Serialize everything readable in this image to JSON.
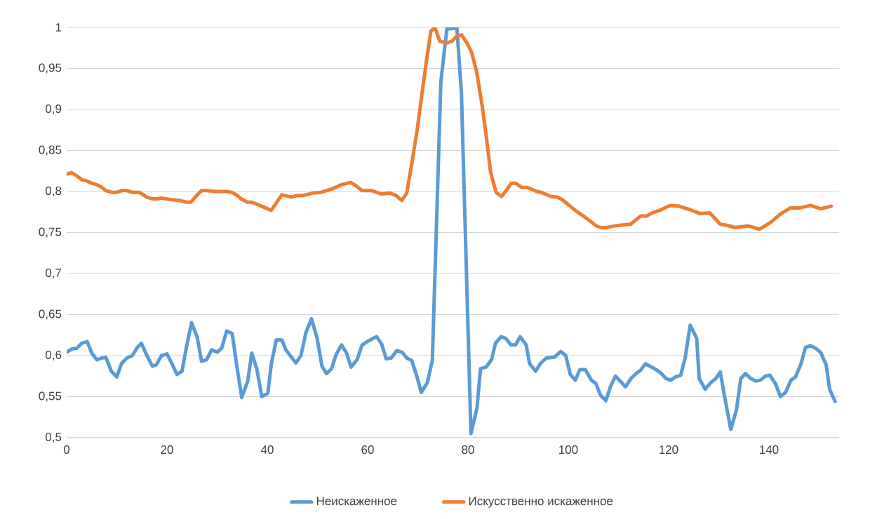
{
  "chart_data": {
    "type": "line",
    "xlim": [
      0,
      154
    ],
    "ylim": [
      0.5,
      1
    ],
    "xticks": [
      0,
      20,
      40,
      60,
      80,
      100,
      120,
      140
    ],
    "yticks": [
      {
        "value": 0.5,
        "label": "0,5"
      },
      {
        "value": 0.55,
        "label": "0,55"
      },
      {
        "value": 0.6,
        "label": "0,6"
      },
      {
        "value": 0.65,
        "label": "0,65"
      },
      {
        "value": 0.7,
        "label": "0,7"
      },
      {
        "value": 0.75,
        "label": "0,75"
      },
      {
        "value": 0.8,
        "label": "0,8"
      },
      {
        "value": 0.85,
        "label": "0,85"
      },
      {
        "value": 0.9,
        "label": "0,9"
      },
      {
        "value": 0.95,
        "label": "0,95"
      },
      {
        "value": 1,
        "label": "1"
      }
    ],
    "grid": "y",
    "legend": "bottom",
    "marker": "none",
    "line_style": "solid",
    "series": [
      {
        "name": "Неискаженное",
        "color": "#5b9bd5",
        "x": [
          0,
          1,
          2,
          3,
          4.1,
          5,
          6,
          7,
          7.8,
          8.9,
          10,
          10.9,
          12,
          13.1,
          14.1,
          14.9,
          16,
          17.1,
          17.9,
          18.9,
          20,
          21,
          22,
          23,
          23.9,
          24.9,
          26,
          26.9,
          27.9,
          28.9,
          30,
          30.9,
          31.9,
          33,
          34,
          34.9,
          36.1,
          36.9,
          37.9,
          38.9,
          40.1,
          40.8,
          41.8,
          42.9,
          43.7,
          44.7,
          45.7,
          46.7,
          47.7,
          48.8,
          49.9,
          50.9,
          51.8,
          52.8,
          53.7,
          54.8,
          55.8,
          56.7,
          57.9,
          58.9,
          59.9,
          60.8,
          61.8,
          62.8,
          63.7,
          64.7,
          65.8,
          66.9,
          67.8,
          68.8,
          69.8,
          70.7,
          71.9,
          72.9,
          74.6,
          75.8,
          77.8,
          78.7,
          80.6,
          81.8,
          82.5,
          83.6,
          84.7,
          85.5,
          86.6,
          87.5,
          88.6,
          89.5,
          90.4,
          91.6,
          92.3,
          93.5,
          94.4,
          95.6,
          97.2,
          98.5,
          99.5,
          100.4,
          101.4,
          102.3,
          103.4,
          104.6,
          105.5,
          106.4,
          107.5,
          108.4,
          109.4,
          110.5,
          111.4,
          112.5,
          113.5,
          114.4,
          115.4,
          116.3,
          117.5,
          118.4,
          119.5,
          120.4,
          121.4,
          122.4,
          123.3,
          124.3,
          125.6,
          126.1,
          127.3,
          128.4,
          129.4,
          130.3,
          131.1,
          132.4,
          133.5,
          134.4,
          135.3,
          136.4,
          137.4,
          138.3,
          139.3,
          140.2,
          141.3,
          142.3,
          143.3,
          144.4,
          145.3,
          146.4,
          147.3,
          148.3,
          149.3,
          150.3,
          151.4,
          152.1,
          153.2
        ],
        "values": [
          0.604,
          0.608,
          0.609,
          0.615,
          0.617,
          0.603,
          0.595,
          0.597,
          0.598,
          0.581,
          0.574,
          0.59,
          0.597,
          0.6,
          0.61,
          0.615,
          0.6,
          0.587,
          0.589,
          0.6,
          0.602,
          0.59,
          0.577,
          0.581,
          0.611,
          0.64,
          0.623,
          0.593,
          0.595,
          0.607,
          0.604,
          0.609,
          0.63,
          0.627,
          0.584,
          0.549,
          0.569,
          0.603,
          0.584,
          0.55,
          0.554,
          0.59,
          0.619,
          0.619,
          0.607,
          0.599,
          0.591,
          0.6,
          0.628,
          0.645,
          0.622,
          0.587,
          0.578,
          0.584,
          0.601,
          0.613,
          0.603,
          0.586,
          0.595,
          0.613,
          0.617,
          0.62,
          0.623,
          0.614,
          0.596,
          0.597,
          0.606,
          0.604,
          0.597,
          0.594,
          0.575,
          0.555,
          0.567,
          0.594,
          0.934,
          0.998,
          0.999,
          0.92,
          0.505,
          0.536,
          0.584,
          0.586,
          0.595,
          0.615,
          0.623,
          0.621,
          0.613,
          0.613,
          0.623,
          0.613,
          0.59,
          0.581,
          0.59,
          0.597,
          0.598,
          0.605,
          0.6,
          0.577,
          0.57,
          0.583,
          0.583,
          0.57,
          0.566,
          0.552,
          0.545,
          0.562,
          0.575,
          0.568,
          0.562,
          0.572,
          0.578,
          0.582,
          0.59,
          0.587,
          0.583,
          0.579,
          0.572,
          0.57,
          0.574,
          0.576,
          0.597,
          0.637,
          0.621,
          0.572,
          0.559,
          0.567,
          0.572,
          0.58,
          0.552,
          0.51,
          0.533,
          0.572,
          0.578,
          0.572,
          0.569,
          0.57,
          0.575,
          0.576,
          0.566,
          0.55,
          0.555,
          0.57,
          0.574,
          0.59,
          0.61,
          0.612,
          0.609,
          0.604,
          0.589,
          0.559,
          0.544
        ]
      },
      {
        "name": "Искусственно искаженное",
        "color": "#ed7d31",
        "x": [
          0,
          1,
          2,
          3.1,
          3.9,
          5,
          6.1,
          7,
          7.8,
          9,
          10,
          11,
          12,
          13.1,
          14.5,
          16,
          17.1,
          17.9,
          18.9,
          20.9,
          22.5,
          23.9,
          24.8,
          25.9,
          26.9,
          27.9,
          29.7,
          31.7,
          32.9,
          33.8,
          34.8,
          36,
          36.9,
          37.7,
          38.9,
          40.8,
          42.9,
          44.8,
          45.9,
          47.1,
          49,
          50.7,
          52.9,
          54.7,
          56.6,
          57.7,
          58.9,
          60.8,
          62.8,
          64.5,
          65.7,
          66.8,
          67.8,
          68.8,
          69.9,
          70.9,
          71.7,
          72.6,
          73.4,
          74.4,
          75.8,
          76.8,
          77.7,
          78.7,
          79.8,
          80.7,
          81.7,
          82.8,
          83.6,
          84.5,
          85.6,
          86.7,
          87.6,
          88.6,
          89.5,
          90.7,
          91.8,
          93.7,
          94.6,
          96.5,
          97.9,
          98.8,
          101.4,
          103.7,
          105.6,
          106.5,
          107.5,
          109.3,
          110.5,
          112.4,
          114.4,
          115.6,
          116.8,
          118.2,
          120.3,
          122.1,
          124.2,
          126.3,
          128.2,
          130.3,
          131.5,
          133.3,
          134.5,
          135.9,
          138.1,
          140.3,
          142.4,
          144.3,
          146.2,
          148.3,
          150.3,
          152.4
        ],
        "values": [
          0.821,
          0.823,
          0.819,
          0.814,
          0.813,
          0.81,
          0.808,
          0.805,
          0.801,
          0.799,
          0.799,
          0.801,
          0.801,
          0.799,
          0.799,
          0.793,
          0.791,
          0.791,
          0.792,
          0.79,
          0.789,
          0.787,
          0.787,
          0.795,
          0.801,
          0.801,
          0.8,
          0.8,
          0.799,
          0.796,
          0.791,
          0.787,
          0.787,
          0.785,
          0.782,
          0.777,
          0.796,
          0.793,
          0.795,
          0.795,
          0.798,
          0.799,
          0.803,
          0.808,
          0.811,
          0.807,
          0.801,
          0.801,
          0.797,
          0.798,
          0.795,
          0.789,
          0.798,
          0.834,
          0.876,
          0.922,
          0.958,
          0.995,
          1.0,
          0.983,
          0.981,
          0.983,
          0.989,
          0.991,
          0.981,
          0.97,
          0.947,
          0.906,
          0.87,
          0.824,
          0.799,
          0.794,
          0.801,
          0.81,
          0.81,
          0.805,
          0.805,
          0.8,
          0.799,
          0.794,
          0.793,
          0.79,
          0.777,
          0.767,
          0.758,
          0.756,
          0.756,
          0.758,
          0.759,
          0.76,
          0.77,
          0.77,
          0.774,
          0.777,
          0.783,
          0.782,
          0.778,
          0.773,
          0.774,
          0.76,
          0.759,
          0.756,
          0.757,
          0.758,
          0.754,
          0.762,
          0.773,
          0.78,
          0.78,
          0.783,
          0.779,
          0.782
        ]
      }
    ]
  }
}
